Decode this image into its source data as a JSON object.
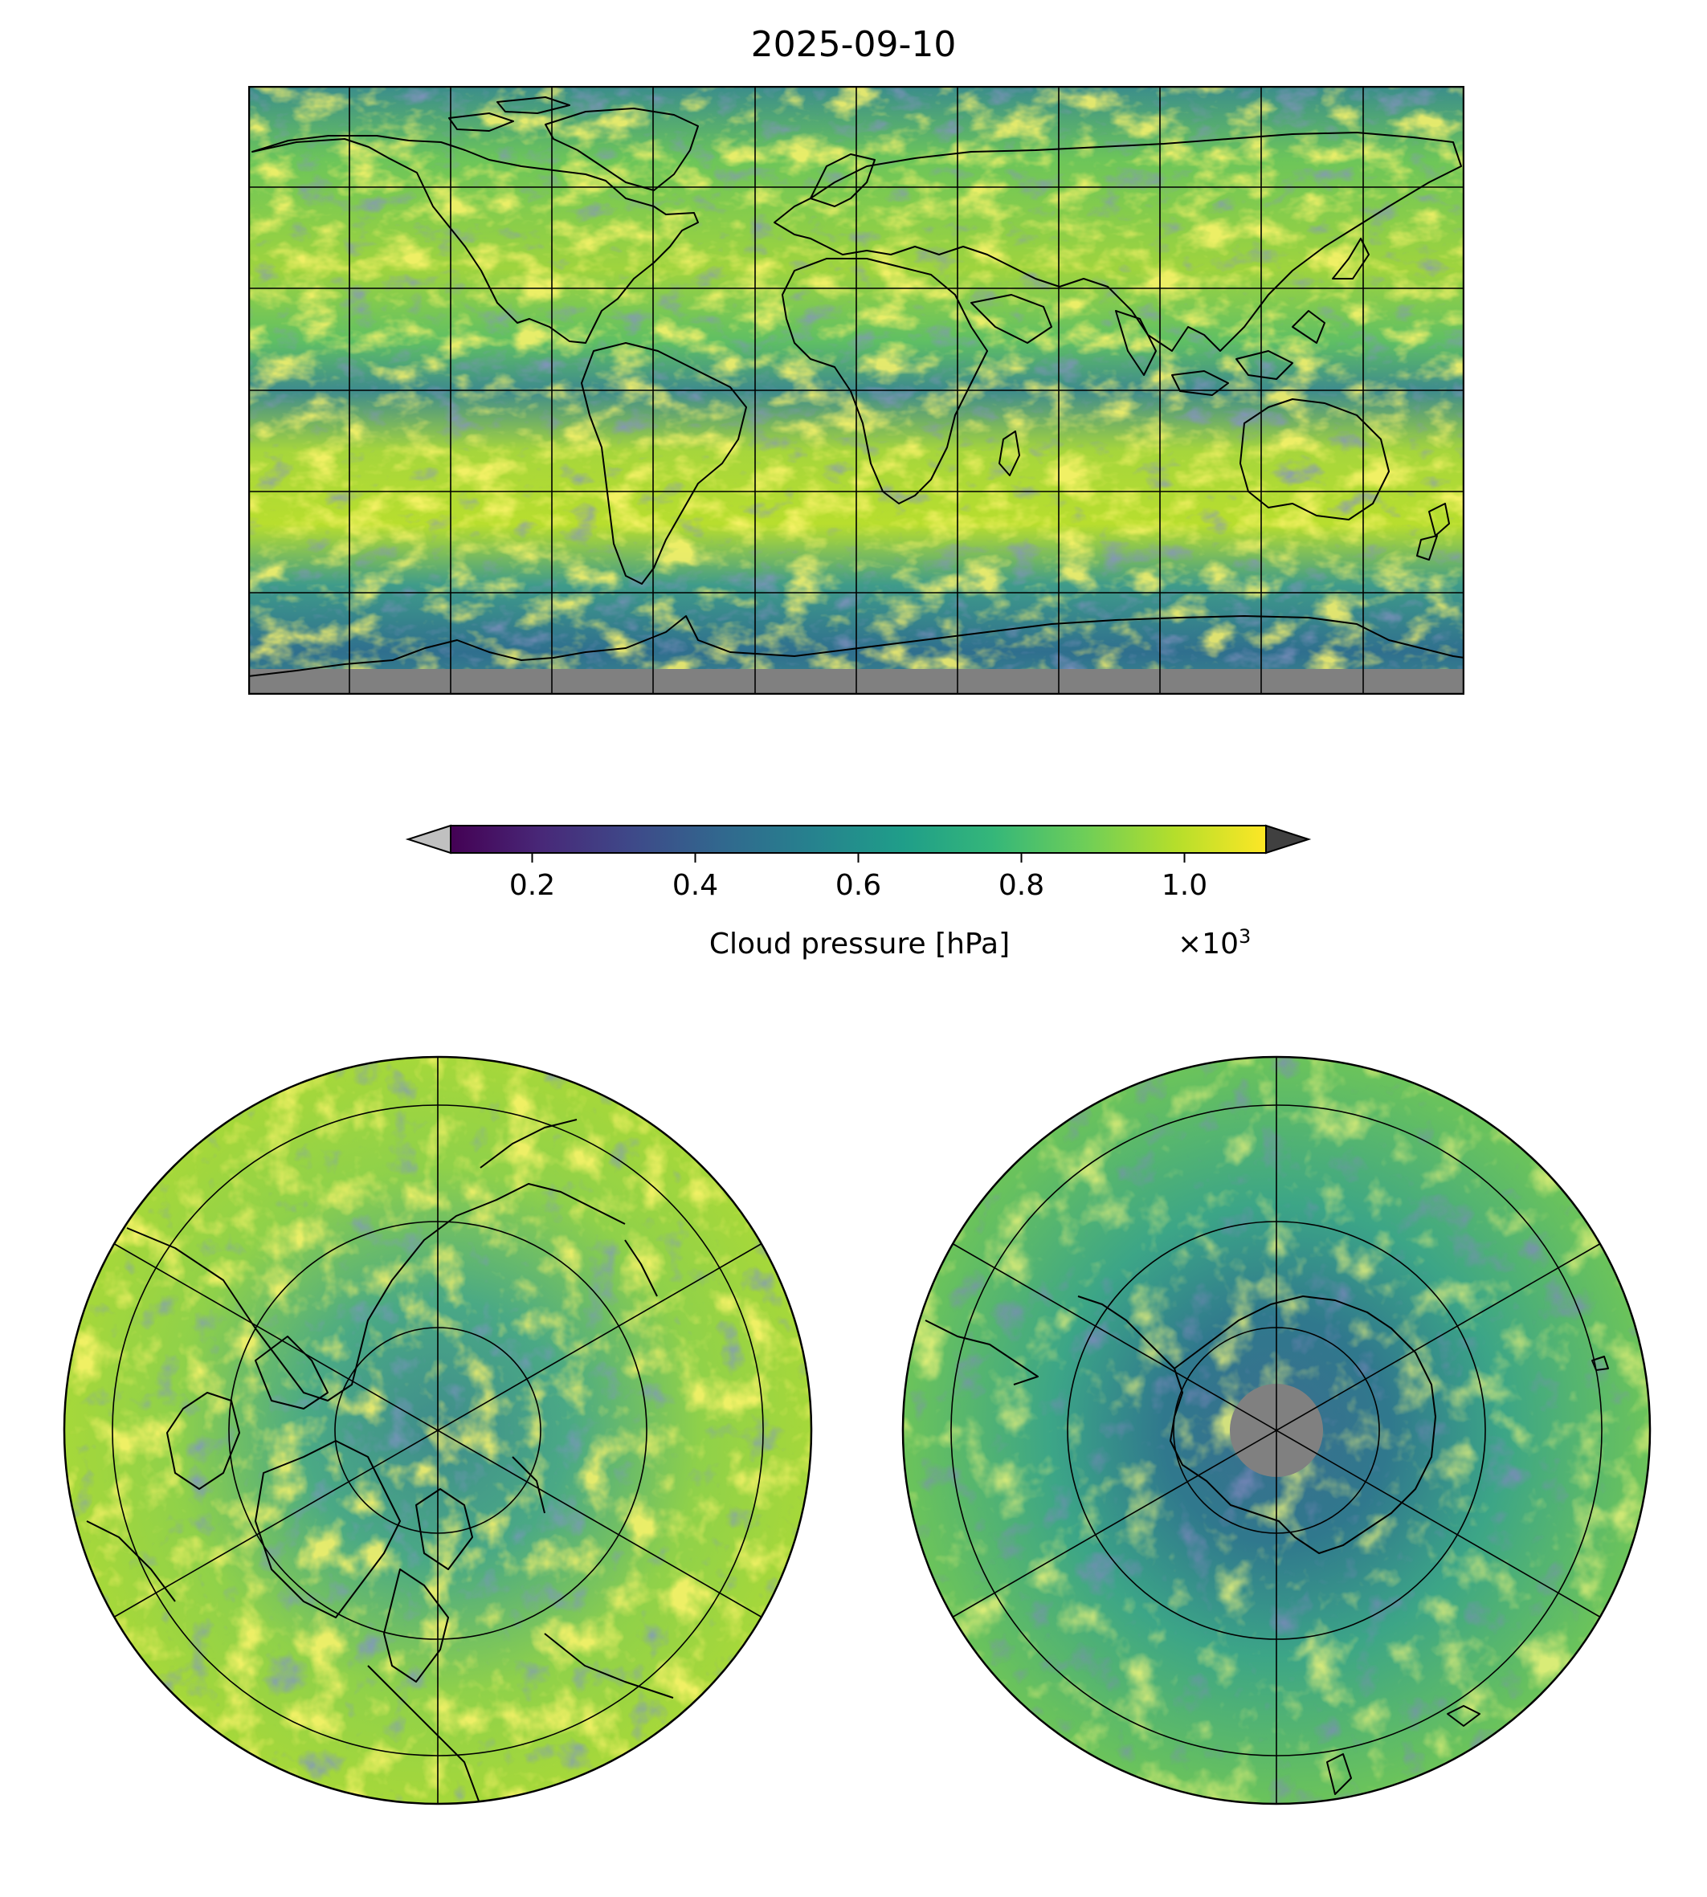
{
  "title": "2025-09-10",
  "colorbar": {
    "label": "Cloud pressure [hPa]",
    "offset_text": "×10",
    "offset_exponent": "3",
    "range": [
      0.1,
      1.1
    ],
    "ticks": [
      {
        "value": 0.2,
        "label": "0.2"
      },
      {
        "value": 0.4,
        "label": "0.4"
      },
      {
        "value": 0.6,
        "label": "0.6"
      },
      {
        "value": 0.8,
        "label": "0.8"
      },
      {
        "value": 1.0,
        "label": "1.0"
      }
    ],
    "extend": "both",
    "under_color": "#c0c0c0",
    "over_color": "#404040",
    "colormap": "viridis",
    "stops": [
      "#440154",
      "#482878",
      "#3e4989",
      "#31688e",
      "#26828e",
      "#1f9e89",
      "#35b779",
      "#6ece58",
      "#b5de2b",
      "#fde725"
    ]
  },
  "missing_color": "#808080",
  "coastline_color": "#000000",
  "maps": [
    {
      "name": "global-equirectangular",
      "projection": "PlateCarree",
      "gridlines": {
        "lon_step": 30,
        "lat_step": 30
      }
    },
    {
      "name": "north-polar-stereographic",
      "projection": "NorthPolarStereo",
      "gridlines": {
        "lon_step": 60,
        "lat_step": 15
      }
    },
    {
      "name": "south-polar-stereographic",
      "projection": "SouthPolarStereo",
      "gridlines": {
        "lon_step": 60,
        "lat_step": 15
      }
    }
  ]
}
